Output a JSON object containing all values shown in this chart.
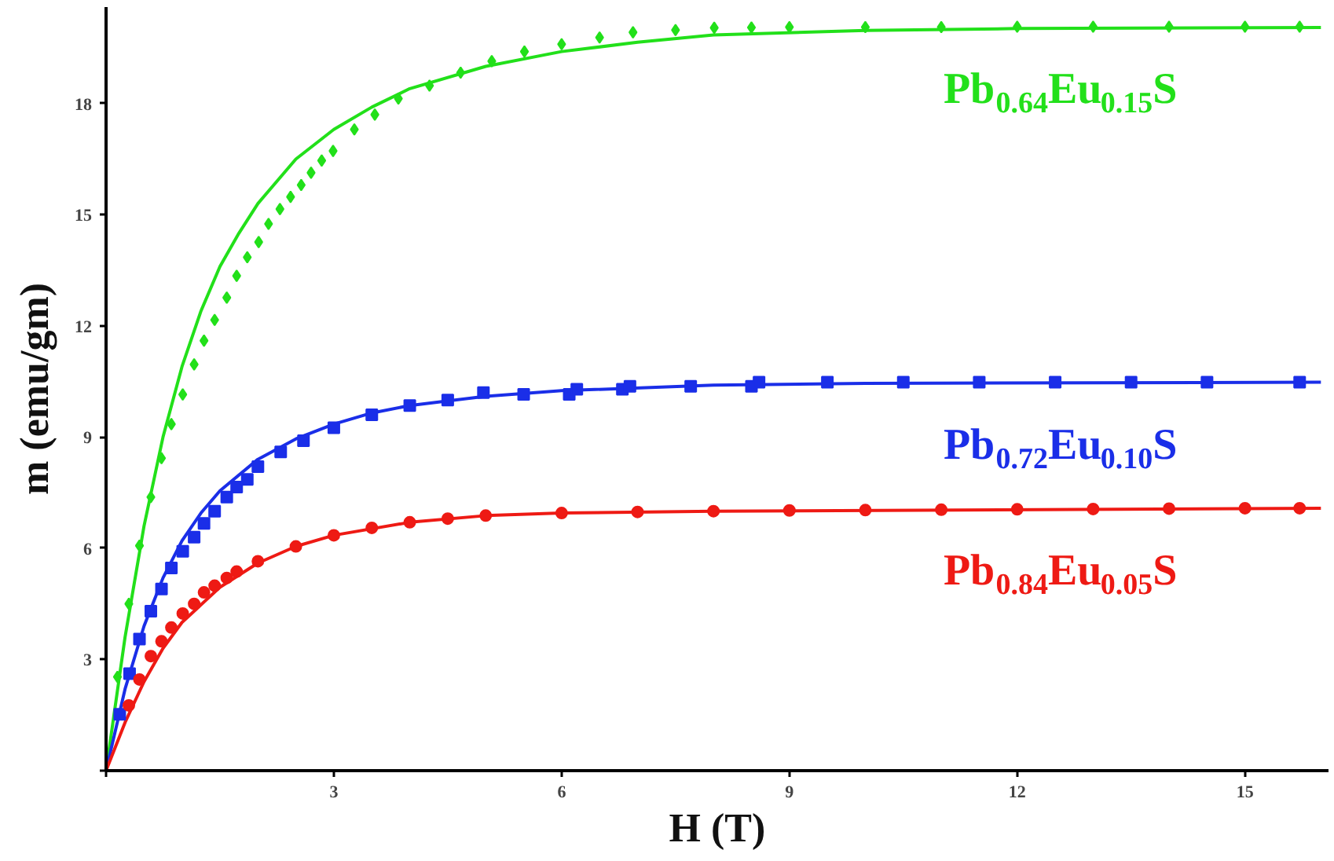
{
  "chart_data": {
    "type": "scatter",
    "xlabel": "H (T)",
    "ylabel": "m (emu/gm)",
    "xlim": [
      0,
      16.1
    ],
    "ylim": [
      0,
      20.6
    ],
    "xticks": [
      {
        "value": 0,
        "label": null
      },
      3,
      6,
      9,
      12,
      15
    ],
    "yticks": [
      {
        "value": 0,
        "label": null
      },
      3,
      6,
      9,
      12,
      15,
      18
    ],
    "grid": false,
    "series": [
      {
        "name": "Pb$_{0.64}$Eu$_{0.15}$S",
        "marker": "diamond",
        "color": "#22e01a",
        "x": [
          0.15,
          0.3,
          0.44,
          0.59,
          0.73,
          0.86,
          1.01,
          1.16,
          1.29,
          1.43,
          1.59,
          1.72,
          1.86,
          2.01,
          2.14,
          2.29,
          2.43,
          2.57,
          2.7,
          2.84,
          2.99,
          3.27,
          3.54,
          3.85,
          4.26,
          4.67,
          5.08,
          5.51,
          6.0,
          6.5,
          6.94,
          7.5,
          8.01,
          8.5,
          9.0,
          10.0,
          11.0,
          12.0,
          13.0,
          14.0,
          15.0,
          15.72
        ],
        "values": [
          2.53,
          4.5,
          6.07,
          7.38,
          8.43,
          9.35,
          10.15,
          10.96,
          11.6,
          12.16,
          12.76,
          13.35,
          13.85,
          14.26,
          14.75,
          15.15,
          15.48,
          15.8,
          16.13,
          16.46,
          16.72,
          17.3,
          17.7,
          18.13,
          18.48,
          18.83,
          19.14,
          19.4,
          19.6,
          19.78,
          19.92,
          19.98,
          20.04,
          20.05,
          20.06,
          20.06,
          20.06,
          20.07,
          20.07,
          20.07,
          20.07,
          20.07
        ]
      },
      {
        "type": "line",
        "color": "#22e01a",
        "x": [
          0,
          0.25,
          0.5,
          0.75,
          1.0,
          1.25,
          1.5,
          1.75,
          2.0,
          2.5,
          3.0,
          3.5,
          4.0,
          5.0,
          6.0,
          7.0,
          8.0,
          10.0,
          12.0,
          16.0
        ],
        "values": [
          0,
          3.6,
          6.6,
          9.0,
          10.9,
          12.4,
          13.6,
          14.5,
          15.3,
          16.5,
          17.3,
          17.9,
          18.4,
          19.0,
          19.4,
          19.65,
          19.85,
          19.97,
          20.02,
          20.05
        ]
      },
      {
        "name": "Pb$_{0.72}$Eu$_{0.10}$S",
        "marker": "square",
        "color": "#1a2ee8",
        "x": [
          0.18,
          0.31,
          0.44,
          0.59,
          0.73,
          0.86,
          1.01,
          1.16,
          1.29,
          1.43,
          1.59,
          1.72,
          1.86,
          2.0,
          2.3,
          2.6,
          3.0,
          3.5,
          4.0,
          4.5,
          4.97,
          5.5,
          6.1,
          6.2,
          6.8,
          6.9,
          7.7,
          8.5,
          8.6,
          9.5,
          10.5,
          11.5,
          12.5,
          13.5,
          14.5,
          15.72
        ],
        "values": [
          1.52,
          2.62,
          3.55,
          4.3,
          4.9,
          5.47,
          5.92,
          6.3,
          6.67,
          7.0,
          7.38,
          7.65,
          7.86,
          8.2,
          8.6,
          8.9,
          9.25,
          9.6,
          9.85,
          10.0,
          10.2,
          10.15,
          10.15,
          10.29,
          10.29,
          10.37,
          10.37,
          10.37,
          10.48,
          10.48,
          10.48,
          10.48,
          10.48,
          10.48,
          10.48,
          10.48
        ]
      },
      {
        "type": "line",
        "color": "#1a2ee8",
        "x": [
          0,
          0.25,
          0.5,
          0.75,
          1.0,
          1.25,
          1.5,
          2.0,
          2.5,
          3.0,
          3.5,
          4.0,
          5.0,
          6.0,
          8.0,
          10.0,
          16.0
        ],
        "values": [
          0,
          2.2,
          3.9,
          5.2,
          6.2,
          6.95,
          7.55,
          8.4,
          8.95,
          9.35,
          9.65,
          9.85,
          10.1,
          10.25,
          10.4,
          10.45,
          10.48
        ]
      },
      {
        "name": "Pb$_{0.84}$Eu$_{0.05}$S",
        "marker": "circle",
        "color": "#ee1a14",
        "x": [
          0.3,
          0.44,
          0.59,
          0.73,
          0.86,
          1.01,
          1.16,
          1.29,
          1.43,
          1.59,
          1.72,
          2.0,
          2.5,
          3.0,
          3.5,
          4.0,
          4.5,
          5.0,
          6.0,
          7.0,
          8.0,
          9.0,
          10.0,
          11.0,
          12.0,
          13.0,
          14.0,
          15.0,
          15.72
        ],
        "values": [
          1.76,
          2.46,
          3.09,
          3.49,
          3.86,
          4.24,
          4.5,
          4.81,
          4.99,
          5.2,
          5.37,
          5.65,
          6.05,
          6.35,
          6.55,
          6.7,
          6.8,
          6.88,
          6.95,
          6.98,
          7.0,
          7.02,
          7.03,
          7.04,
          7.05,
          7.06,
          7.07,
          7.08,
          7.08
        ]
      },
      {
        "type": "line",
        "color": "#ee1a14",
        "x": [
          0,
          0.25,
          0.5,
          0.75,
          1.0,
          1.5,
          2.0,
          2.5,
          3.0,
          4.0,
          5.0,
          6.0,
          8.0,
          16.0
        ],
        "values": [
          0,
          1.3,
          2.4,
          3.3,
          4.0,
          4.95,
          5.6,
          6.05,
          6.35,
          6.7,
          6.88,
          6.95,
          7.0,
          7.08
        ]
      }
    ]
  }
}
